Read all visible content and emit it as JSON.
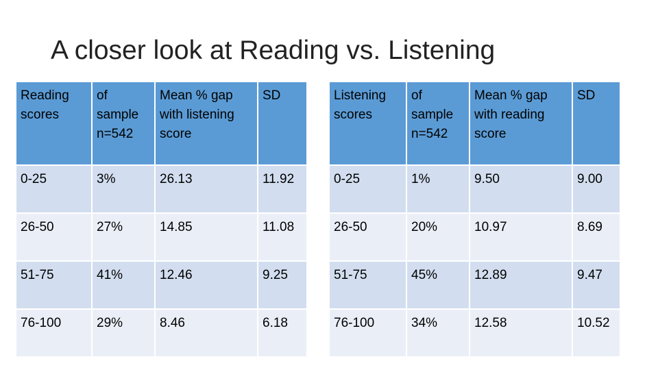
{
  "title": "A closer look at Reading vs. Listening",
  "tables": {
    "reading": {
      "headers": [
        "Reading scores",
        " of sample n=542",
        "Mean % gap with listening score",
        "SD"
      ],
      "rows": [
        [
          "0-25",
          "3%",
          "26.13",
          "11.92"
        ],
        [
          "26-50",
          "27%",
          "14.85",
          "11.08"
        ],
        [
          "51-75",
          "41%",
          "12.46",
          "9.25"
        ],
        [
          "76-100",
          "29%",
          "8.46",
          "6.18"
        ]
      ]
    },
    "listening": {
      "headers": [
        "Listening scores",
        " of sample n=542",
        "Mean % gap with reading score",
        "SD"
      ],
      "rows": [
        [
          "0-25",
          "1%",
          "9.50",
          "9.00"
        ],
        [
          "26-50",
          "20%",
          "10.97",
          "8.69"
        ],
        [
          "51-75",
          "45%",
          "12.89",
          "9.47"
        ],
        [
          "76-100",
          "34%",
          "12.58",
          "10.52"
        ]
      ]
    }
  },
  "colors": {
    "header_fill": "#5b9bd5",
    "row_fill_odd": "#d2deef",
    "row_fill_even": "#eaeff7"
  }
}
